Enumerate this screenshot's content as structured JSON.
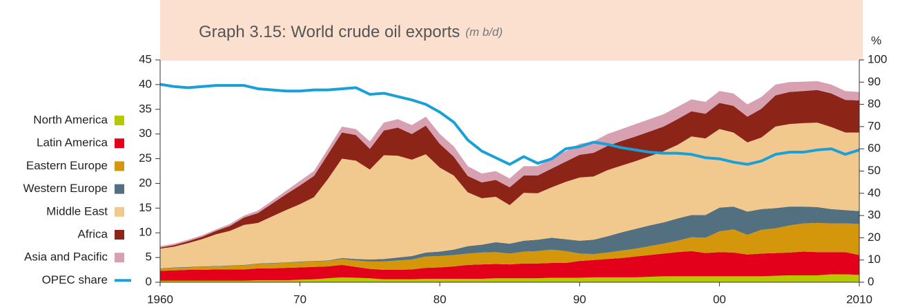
{
  "chart_data": {
    "type": "stacked-area",
    "title": "Graph 3.15: World crude oil exports",
    "units": "(m b/d)",
    "y2_label": "%",
    "x": [
      1960,
      1961,
      1962,
      1963,
      1964,
      1965,
      1966,
      1967,
      1968,
      1969,
      1970,
      1971,
      1972,
      1973,
      1974,
      1975,
      1976,
      1977,
      1978,
      1979,
      1980,
      1981,
      1982,
      1983,
      1984,
      1985,
      1986,
      1987,
      1988,
      1989,
      1990,
      1991,
      1992,
      1993,
      1994,
      1995,
      1996,
      1997,
      1998,
      1999,
      2000,
      2001,
      2002,
      2003,
      2004,
      2005,
      2006,
      2007,
      2008,
      2009,
      2010
    ],
    "xlim": [
      1960,
      2010
    ],
    "xticks": [
      1960,
      {
        "value": 1970,
        "label": "70"
      },
      {
        "value": 1980,
        "label": "80"
      },
      {
        "value": 1990,
        "label": "90"
      },
      {
        "value": 2000,
        "label": "00"
      },
      2010
    ],
    "ylim": [
      0,
      45
    ],
    "yticks": [
      0,
      5,
      10,
      15,
      20,
      25,
      30,
      35,
      40,
      45
    ],
    "y2lim": [
      0,
      100
    ],
    "y2ticks": [
      0,
      10,
      20,
      30,
      40,
      50,
      60,
      70,
      80,
      90,
      100
    ],
    "grid": false,
    "legend": "left",
    "series": [
      {
        "name": "North America",
        "color": "#b8c800",
        "values": [
          0.3,
          0.3,
          0.3,
          0.3,
          0.3,
          0.3,
          0.3,
          0.4,
          0.4,
          0.4,
          0.5,
          0.6,
          0.8,
          1.0,
          0.9,
          0.8,
          0.6,
          0.6,
          0.6,
          0.7,
          0.7,
          0.7,
          0.7,
          0.7,
          0.8,
          0.8,
          0.8,
          0.8,
          0.9,
          0.9,
          0.9,
          1.0,
          1.0,
          1.0,
          1.0,
          1.1,
          1.2,
          1.2,
          1.2,
          1.2,
          1.2,
          1.2,
          1.2,
          1.2,
          1.3,
          1.4,
          1.4,
          1.4,
          1.6,
          1.6,
          1.5
        ]
      },
      {
        "name": "Latin America",
        "color": "#e2001a",
        "values": [
          2.0,
          2.1,
          2.2,
          2.2,
          2.3,
          2.3,
          2.3,
          2.4,
          2.4,
          2.5,
          2.5,
          2.5,
          2.4,
          2.5,
          2.2,
          1.9,
          1.9,
          1.9,
          2.0,
          2.2,
          2.3,
          2.5,
          2.8,
          2.9,
          2.9,
          2.8,
          3.0,
          3.0,
          3.0,
          3.0,
          3.4,
          3.5,
          3.7,
          3.9,
          4.2,
          4.4,
          4.6,
          4.9,
          5.1,
          4.7,
          4.9,
          4.8,
          4.4,
          4.6,
          4.6,
          4.6,
          4.8,
          4.7,
          4.5,
          4.5,
          4.0
        ]
      },
      {
        "name": "Eastern Europe",
        "color": "#d4960a",
        "values": [
          0.4,
          0.5,
          0.5,
          0.6,
          0.6,
          0.7,
          0.8,
          0.9,
          1.0,
          1.0,
          1.1,
          1.1,
          1.1,
          1.2,
          1.3,
          1.5,
          1.7,
          1.9,
          2.0,
          2.3,
          2.3,
          2.3,
          2.3,
          2.4,
          2.4,
          2.2,
          2.4,
          2.5,
          2.7,
          2.4,
          1.5,
          1.2,
          1.3,
          1.5,
          1.6,
          1.8,
          2.0,
          2.3,
          2.8,
          3.1,
          4.2,
          4.7,
          4.0,
          4.8,
          5.0,
          5.5,
          5.7,
          5.9,
          5.8,
          5.8,
          6.3
        ]
      },
      {
        "name": "Western Europe",
        "color": "#52707f",
        "values": [
          0.1,
          0.1,
          0.1,
          0.1,
          0.1,
          0.1,
          0.1,
          0.1,
          0.1,
          0.1,
          0.1,
          0.1,
          0.1,
          0.2,
          0.3,
          0.4,
          0.5,
          0.6,
          0.7,
          0.8,
          0.9,
          1.1,
          1.5,
          1.6,
          2.0,
          2.0,
          2.2,
          2.3,
          2.4,
          2.4,
          2.6,
          2.9,
          3.3,
          3.7,
          4.0,
          4.2,
          4.3,
          4.5,
          4.5,
          4.6,
          4.8,
          4.6,
          4.7,
          4.2,
          4.1,
          3.8,
          3.4,
          3.2,
          2.9,
          2.7,
          2.6
        ]
      },
      {
        "name": "Middle East",
        "color": "#f1c98f",
        "values": [
          4.0,
          4.2,
          4.8,
          5.5,
          6.4,
          7.0,
          8.1,
          8.2,
          9.4,
          10.6,
          11.6,
          12.9,
          16.5,
          20.1,
          19.9,
          18.2,
          21.0,
          20.6,
          19.5,
          19.9,
          17.0,
          15.0,
          10.9,
          9.4,
          9.2,
          7.8,
          9.7,
          9.4,
          10.2,
          11.6,
          12.8,
          12.8,
          13.4,
          13.5,
          13.7,
          14.0,
          14.4,
          14.9,
          15.9,
          15.5,
          15.9,
          15.0,
          14.0,
          14.5,
          16.5,
          16.7,
          16.9,
          17.1,
          16.6,
          15.7,
          15.9
        ]
      },
      {
        "name": "Africa",
        "color": "#8d2418",
        "values": [
          0.2,
          0.3,
          0.4,
          0.5,
          0.7,
          1.0,
          1.5,
          2.0,
          2.6,
          3.2,
          3.8,
          4.3,
          5.0,
          5.3,
          5.2,
          4.2,
          5.0,
          5.7,
          5.2,
          5.8,
          4.8,
          3.8,
          3.3,
          3.2,
          3.4,
          3.6,
          3.5,
          3.6,
          3.8,
          4.1,
          4.6,
          4.8,
          4.9,
          5.0,
          5.0,
          5.0,
          5.0,
          5.2,
          5.1,
          5.0,
          5.3,
          5.4,
          5.2,
          5.8,
          6.3,
          6.5,
          6.5,
          6.6,
          6.8,
          6.6,
          6.5
        ]
      },
      {
        "name": "Asia and Pacific",
        "color": "#d8a1b1",
        "values": [
          0.3,
          0.3,
          0.3,
          0.3,
          0.3,
          0.4,
          0.4,
          0.5,
          0.6,
          0.7,
          0.9,
          1.0,
          1.1,
          1.2,
          1.2,
          1.5,
          1.6,
          1.7,
          1.8,
          1.8,
          2.0,
          2.1,
          2.0,
          1.8,
          1.8,
          1.8,
          1.9,
          1.9,
          2.0,
          2.1,
          2.2,
          2.3,
          2.4,
          2.4,
          2.5,
          2.5,
          2.5,
          2.5,
          2.4,
          2.4,
          2.4,
          2.5,
          2.5,
          2.4,
          2.2,
          2.0,
          1.9,
          1.8,
          1.8,
          1.8,
          1.7
        ]
      },
      {
        "name": "OPEC share",
        "color": "#1aa0d8",
        "axis": "y2",
        "values": [
          89,
          88,
          87.5,
          88,
          88.5,
          88.5,
          88.5,
          87,
          86.5,
          86,
          86,
          86.5,
          86.5,
          87,
          87.5,
          84.5,
          85,
          83.5,
          82,
          80,
          76.5,
          72,
          64,
          59,
          56,
          53,
          56.5,
          53.5,
          55.5,
          60,
          61,
          63,
          62,
          60.5,
          59.5,
          58.5,
          58,
          58,
          57.5,
          56,
          55.5,
          54,
          53,
          54.5,
          57.5,
          58.5,
          58.5,
          59.5,
          60,
          57.5,
          59.5
        ]
      }
    ]
  }
}
